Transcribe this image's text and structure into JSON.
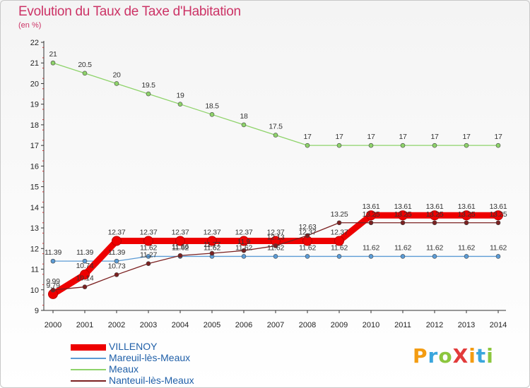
{
  "header": {
    "title": "Evolution du Taux de Taxe d'Habitation",
    "subtitle": "(en %)"
  },
  "logo": {
    "text": "ProXiti",
    "letters": [
      "P",
      "r",
      "o",
      "X",
      "i",
      "t",
      "i"
    ],
    "letter_colors": [
      "#f39c12",
      "#3aa6dd",
      "#8cc63e",
      "#e23b3b",
      "#f39c12",
      "#3aa6dd",
      "#8cc63e"
    ]
  },
  "chart_data": {
    "type": "line",
    "title": "Evolution du Taux de Taxe d'Habitation",
    "subtitle": "(en %)",
    "xlabel": "",
    "ylabel": "",
    "ylim": [
      9,
      22
    ],
    "y_ticks": [
      9,
      10,
      11,
      12,
      13,
      14,
      15,
      16,
      17,
      18,
      19,
      20,
      21,
      22
    ],
    "grid": "none",
    "legend_position": "bottom-left",
    "x": [
      "2000",
      "2001",
      "2002",
      "2003",
      "2004",
      "2005",
      "2006",
      "2007",
      "2008",
      "2009",
      "2010",
      "2011",
      "2012",
      "2013",
      "2014"
    ],
    "series": [
      {
        "name": "VILLENOY",
        "color": "#ee0000",
        "style": "thick",
        "values": [
          9.79,
          10.74,
          12.37,
          12.37,
          12.37,
          12.37,
          12.37,
          12.37,
          12.37,
          12.37,
          13.61,
          13.61,
          13.61,
          13.61,
          13.61
        ],
        "labels": [
          "9.79",
          "10.74",
          "12.37",
          "12.37",
          "12.37",
          "12.37",
          "12.37",
          "12.37",
          "12.37",
          "12.37",
          "13.61",
          "13.61",
          "13.61",
          "13.61",
          "13.61"
        ]
      },
      {
        "name": "Mareuil-lès-Meaux",
        "color": "#5b9bd5",
        "style": "thin",
        "values": [
          11.39,
          11.39,
          11.39,
          11.62,
          11.62,
          11.62,
          11.62,
          11.62,
          11.62,
          11.62,
          11.62,
          11.62,
          11.62,
          11.62,
          11.62
        ],
        "labels": [
          "11.39",
          "11.39",
          "11.39",
          "11.62",
          "11.62",
          "11.62",
          "11.62",
          "11.62",
          "11.62",
          "11.62",
          "11.62",
          "11.62",
          "11.62",
          "11.62",
          "11.62"
        ]
      },
      {
        "name": "Meaux",
        "color": "#8ed36a",
        "style": "thin",
        "values": [
          21,
          20.5,
          20,
          19.5,
          19,
          18.5,
          18,
          17.5,
          17,
          17,
          17,
          17,
          17,
          17,
          17
        ],
        "labels": [
          "21",
          "20.5",
          "20",
          "19.5",
          "19",
          "18.5",
          "18",
          "17.5",
          "17",
          "17",
          "17",
          "17",
          "17",
          "17",
          "17"
        ]
      },
      {
        "name": "Nanteuil-lès-Meaux",
        "color": "#7b2020",
        "style": "thin",
        "values": [
          9.99,
          10.14,
          10.73,
          11.27,
          11.66,
          11.77,
          11.9,
          12.13,
          12.63,
          13.25,
          13.25,
          13.25,
          13.25,
          13.25,
          13.25
        ],
        "labels": [
          "9.99",
          "10.14",
          "10.73",
          "11.27",
          "11.66",
          "11.77",
          "11.9",
          "12.13",
          "12.63",
          "13.25",
          "13.25",
          "13.25",
          "13.25",
          "13.25",
          "13.25"
        ]
      }
    ]
  }
}
